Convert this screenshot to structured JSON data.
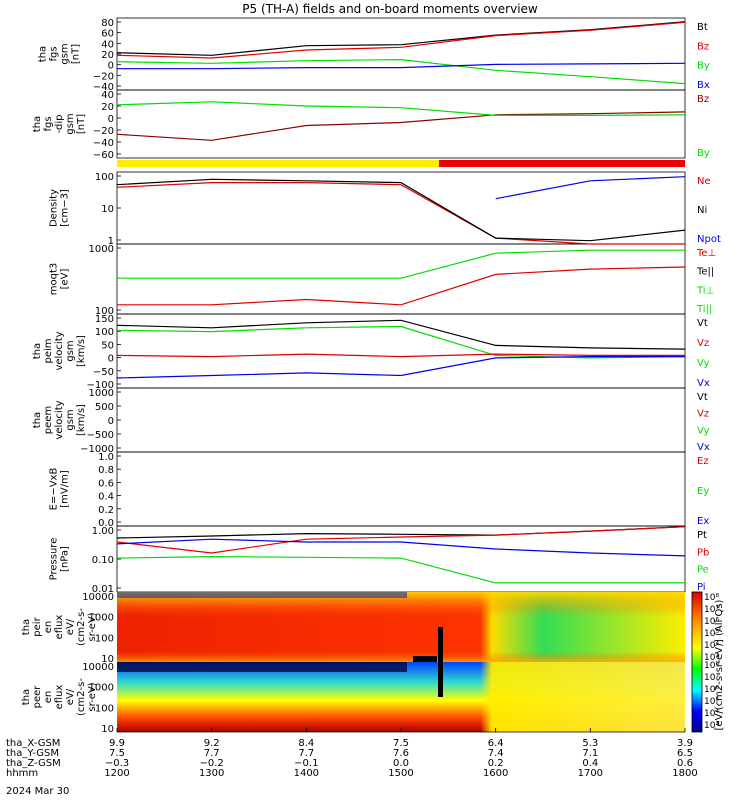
{
  "title": "P5 (TH-A) fields and on-board moments overview",
  "colors": {
    "black": "#000000",
    "red": "#e00000",
    "green": "#00dd00",
    "blue": "#0000ee",
    "darkred": "#8b0000",
    "yellow": "#ffee00",
    "barred": "#ee0000"
  },
  "panels": [
    {
      "id": "p1",
      "ylabel": [
        "tha",
        "fgs",
        "gsm",
        "[nT]"
      ],
      "ticks": [
        "80",
        "60",
        "40",
        "20",
        "0",
        "−20",
        "−40"
      ],
      "legend": [
        {
          "text": "Bt",
          "color": "black"
        },
        {
          "text": "Bz",
          "color": "red"
        },
        {
          "text": "By",
          "color": "green"
        },
        {
          "text": "Bx",
          "color": "blue"
        }
      ]
    },
    {
      "id": "p2",
      "ylabel": [
        "tha",
        "fgs",
        "-dip",
        "gsm",
        "[nT]"
      ],
      "ticks": [
        "40",
        "20",
        "0",
        "−20",
        "−40",
        "−60"
      ],
      "legend": [
        {
          "text": "Bz",
          "color": "darkred"
        },
        {
          "text": "By",
          "color": "green"
        }
      ]
    },
    {
      "id": "p3",
      "ylabel": [
        "Density",
        "[cm−3]"
      ],
      "ticks": [
        "100",
        "10",
        "1"
      ],
      "legend": [
        {
          "text": "Ne",
          "color": "red"
        },
        {
          "text": "Ni",
          "color": "black"
        },
        {
          "text": "Npot",
          "color": "blue"
        }
      ]
    },
    {
      "id": "p4",
      "ylabel": [
        "moqt3",
        "[eV]"
      ],
      "ticks": [
        "1000",
        "100"
      ],
      "legend": [
        {
          "text": "Te⊥",
          "color": "red"
        },
        {
          "text": "Te||",
          "color": "black"
        },
        {
          "text": "Ti⊥",
          "color": "green"
        },
        {
          "text": "Ti||",
          "color": "green"
        }
      ]
    },
    {
      "id": "p5",
      "ylabel": [
        "tha",
        "peim",
        "velocity",
        "gsm",
        "[km/s]"
      ],
      "ticks": [
        "150",
        "100",
        "50",
        "0",
        "−50",
        "−100"
      ],
      "legend": [
        {
          "text": "Vt",
          "color": "black"
        },
        {
          "text": "Vz",
          "color": "red"
        },
        {
          "text": "Vy",
          "color": "green"
        },
        {
          "text": "Vx",
          "color": "blue"
        }
      ]
    },
    {
      "id": "p6",
      "ylabel": [
        "tha",
        "peem",
        "velocity",
        "gsm",
        "[km/s]"
      ],
      "ticks": [
        "1000",
        "500",
        "0",
        "−500",
        "−1000"
      ],
      "legend": [
        {
          "text": "Vt",
          "color": "black"
        },
        {
          "text": "Vz",
          "color": "red"
        },
        {
          "text": "Vy",
          "color": "green"
        },
        {
          "text": "Vx",
          "color": "blue"
        }
      ]
    },
    {
      "id": "p7",
      "ylabel": [
        "E=−VxB",
        "[mV/m]"
      ],
      "ticks": [
        "1.0",
        "0.8",
        "0.6",
        "0.4",
        "0.2",
        "0.0"
      ],
      "legend": [
        {
          "text": "Ez",
          "color": "red"
        },
        {
          "text": "Ey",
          "color": "green"
        },
        {
          "text": "Ex",
          "color": "blue"
        }
      ]
    },
    {
      "id": "p8",
      "ylabel": [
        "Pressure",
        "[nPa]"
      ],
      "ticks": [
        "1.00",
        "0.10",
        "0.01"
      ],
      "legend": [
        {
          "text": "Pt",
          "color": "black"
        },
        {
          "text": "Pb",
          "color": "red"
        },
        {
          "text": "Pe",
          "color": "green"
        },
        {
          "text": "Pi",
          "color": "blue"
        }
      ]
    },
    {
      "id": "p9",
      "ylabel": [
        "tha",
        "peir",
        "en",
        "eflux",
        "eV/",
        "(cm2-s-",
        "sr-eV)"
      ],
      "ticks": [
        "10000",
        "1000",
        "100",
        "10"
      ]
    },
    {
      "id": "p10",
      "ylabel": [
        "tha",
        "peer",
        "en",
        "eflux",
        "eV/",
        "(cm2-s-",
        "sr-eV)"
      ],
      "ticks": [
        "10000",
        "1000",
        "100",
        "10"
      ]
    }
  ],
  "colorbar": {
    "label": "[eV/(cm2-s-sr-eV)] (All Qs)",
    "ticks_top": [
      "10⁸",
      "10⁷",
      "10⁶",
      "10⁵",
      "10⁴",
      "10³"
    ],
    "ticks_bottom": [
      "10⁸",
      "10⁷",
      "10⁶",
      "10⁵",
      "10⁴",
      "10³"
    ]
  },
  "xaxis": {
    "rows": [
      {
        "label": "tha_X-GSM",
        "values": [
          "9.9",
          "9.2",
          "8.4",
          "7.5",
          "6.4",
          "5.3",
          "3.9"
        ]
      },
      {
        "label": "tha_Y-GSM",
        "values": [
          "7.5",
          "7.7",
          "7.7",
          "7.6",
          "7.4",
          "7.1",
          "6.5"
        ]
      },
      {
        "label": "tha_Z-GSM",
        "values": [
          "−0.3",
          "−0.2",
          "−0.1",
          "0.0",
          "0.2",
          "0.4",
          "0.6"
        ]
      },
      {
        "label": "hhmm",
        "values": [
          "1200",
          "1300",
          "1400",
          "1500",
          "1600",
          "1700",
          "1800"
        ]
      }
    ],
    "date": "2024 Mar 30"
  },
  "chart_data": {
    "type": "line",
    "title": "P5 (TH-A) fields and on-board moments overview",
    "x": [
      "1200",
      "1300",
      "1400",
      "1500",
      "1600",
      "1700",
      "1800"
    ],
    "xlabel": "hhmm",
    "date": "2024 Mar 30",
    "mode_bar": [
      {
        "from": "1200",
        "to": "1530",
        "color": "yellow"
      },
      {
        "from": "1530",
        "to": "1800",
        "color": "red"
      }
    ],
    "series": [
      {
        "name": "Bt",
        "panel": "p1",
        "values": [
          25,
          20,
          38,
          40,
          58,
          68,
          83
        ]
      },
      {
        "name": "Bz",
        "panel": "p1",
        "values": [
          20,
          15,
          30,
          35,
          57,
          67,
          82
        ]
      },
      {
        "name": "By",
        "panel": "p1",
        "values": [
          8,
          5,
          10,
          12,
          -8,
          -20,
          -33
        ]
      },
      {
        "name": "Bx",
        "panel": "p1",
        "values": [
          -5,
          -5,
          -3,
          -3,
          3,
          4,
          5
        ]
      },
      {
        "name": "Bz",
        "panel": "p2",
        "values": [
          -30,
          -40,
          -15,
          -10,
          3,
          5,
          8
        ]
      },
      {
        "name": "By",
        "panel": "p2",
        "values": [
          20,
          25,
          18,
          15,
          2,
          2,
          3
        ]
      },
      {
        "name": "Ne",
        "panel": "p3",
        "values": [
          40,
          60,
          60,
          50,
          0.5,
          0.3,
          0.2
        ]
      },
      {
        "name": "Ni",
        "panel": "p3",
        "values": [
          50,
          80,
          70,
          60,
          0.5,
          0.4,
          1
        ]
      },
      {
        "name": "Npot",
        "panel": "p3",
        "values": [
          10,
          null,
          null,
          null,
          15,
          70,
          100
        ]
      },
      {
        "name": "Ti⊥",
        "panel": "p4",
        "values": [
          300,
          300,
          300,
          300,
          2000,
          2500,
          2500
        ]
      },
      {
        "name": "Te⊥",
        "panel": "p4",
        "values": [
          40,
          40,
          60,
          40,
          400,
          600,
          700
        ]
      },
      {
        "name": "Vt",
        "panel": "p5",
        "values": [
          120,
          110,
          130,
          140,
          40,
          30,
          25
        ]
      },
      {
        "name": "Vy",
        "panel": "p5",
        "values": [
          100,
          95,
          110,
          115,
          0,
          -10,
          -5
        ]
      },
      {
        "name": "Vz",
        "panel": "p5",
        "values": [
          0,
          -5,
          5,
          -5,
          5,
          0,
          0
        ]
      },
      {
        "name": "Vx",
        "panel": "p5",
        "values": [
          -90,
          -80,
          -70,
          -80,
          -10,
          -5,
          -5
        ]
      },
      {
        "name": "Pt",
        "panel": "p8",
        "values": [
          0.9,
          1.1,
          1.4,
          1.3,
          1.2,
          1.8,
          2.8
        ]
      },
      {
        "name": "Pb",
        "panel": "p8",
        "values": [
          0.6,
          0.2,
          0.8,
          1.0,
          1.2,
          1.8,
          2.8
        ]
      },
      {
        "name": "Pi",
        "panel": "p8",
        "values": [
          0.5,
          0.8,
          0.6,
          0.6,
          0.3,
          0.2,
          0.15
        ]
      },
      {
        "name": "Pe",
        "panel": "p8",
        "values": [
          0.12,
          0.14,
          0.13,
          0.12,
          0.01,
          0.01,
          0.01
        ]
      }
    ]
  }
}
